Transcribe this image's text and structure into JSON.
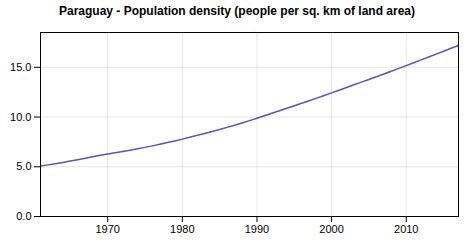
{
  "chart_data": {
    "type": "line",
    "title": "Paraguay - Population density (people per sq. km of land area)",
    "x": [
      1961,
      1962,
      1963,
      1964,
      1965,
      1966,
      1967,
      1968,
      1969,
      1970,
      1971,
      1972,
      1973,
      1974,
      1975,
      1976,
      1977,
      1978,
      1979,
      1980,
      1981,
      1982,
      1983,
      1984,
      1985,
      1986,
      1987,
      1988,
      1989,
      1990,
      1991,
      1992,
      1993,
      1994,
      1995,
      1996,
      1997,
      1998,
      1999,
      2000,
      2001,
      2002,
      2003,
      2004,
      2005,
      2006,
      2007,
      2008,
      2009,
      2010,
      2011,
      2012,
      2013,
      2014,
      2015,
      2016,
      2017
    ],
    "values": [
      5.08,
      5.19,
      5.31,
      5.44,
      5.57,
      5.71,
      5.86,
      6.01,
      6.15,
      6.28,
      6.41,
      6.54,
      6.67,
      6.81,
      6.95,
      7.1,
      7.26,
      7.43,
      7.6,
      7.78,
      7.97,
      8.16,
      8.35,
      8.55,
      8.75,
      8.96,
      9.18,
      9.41,
      9.64,
      9.88,
      10.13,
      10.38,
      10.63,
      10.88,
      11.13,
      11.38,
      11.64,
      11.9,
      12.16,
      12.43,
      12.7,
      12.97,
      13.24,
      13.51,
      13.78,
      14.05,
      14.33,
      14.61,
      14.89,
      15.17,
      15.46,
      15.75,
      16.04,
      16.33,
      16.62,
      16.91,
      17.2
    ],
    "color": "#5555bb",
    "xlim": [
      1961,
      2017
    ],
    "ylim": [
      0.0,
      18.5
    ],
    "xticks": [
      1970,
      1980,
      1990,
      2000,
      2010
    ],
    "yticks": [
      {
        "value": 0.0,
        "label": "0.0"
      },
      {
        "value": 5.0,
        "label": "5.0"
      },
      {
        "value": 10.0,
        "label": "10.0"
      },
      {
        "value": 15.0,
        "label": "15.0"
      }
    ],
    "grid": true
  }
}
